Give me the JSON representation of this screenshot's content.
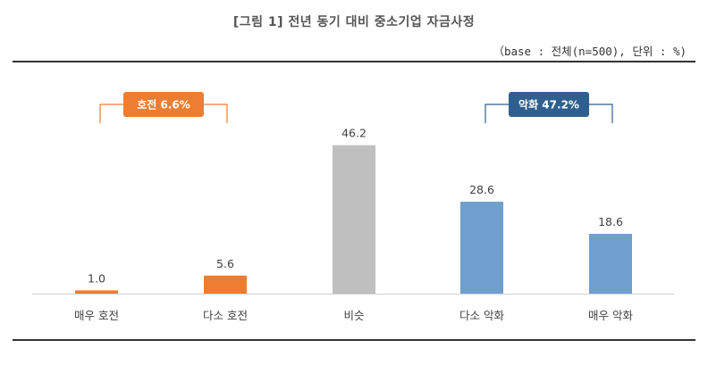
{
  "chart_data": {
    "type": "bar",
    "title": "[그림 1] 전년 동기 대비 중소기업 자금사정",
    "subtitle": "（base : 전체(n=500), 단위 : %)",
    "categories": [
      "매우 호전",
      "다소 호전",
      "비슷",
      "다소 악화",
      "매우 악화"
    ],
    "values": [
      1.0,
      5.6,
      46.2,
      28.6,
      18.6
    ],
    "value_labels": [
      "1.0",
      "5.6",
      "46.2",
      "28.6",
      "18.6"
    ],
    "ylim": [
      0,
      50
    ],
    "grid": false,
    "bar_colors": [
      "#ed7d31",
      "#ed7d31",
      "#bfbfbf",
      "#6f9fcd",
      "#6f9fcd"
    ],
    "group_badges": [
      {
        "label": "호전 6.6%",
        "color": "#ed7d31",
        "bracket_color": "#ed7d31",
        "covers": [
          0,
          1
        ]
      },
      {
        "label": "악화 47.2%",
        "color": "#2f5f8f",
        "bracket_color": "#2f5f8f",
        "covers": [
          3,
          4
        ]
      }
    ]
  }
}
